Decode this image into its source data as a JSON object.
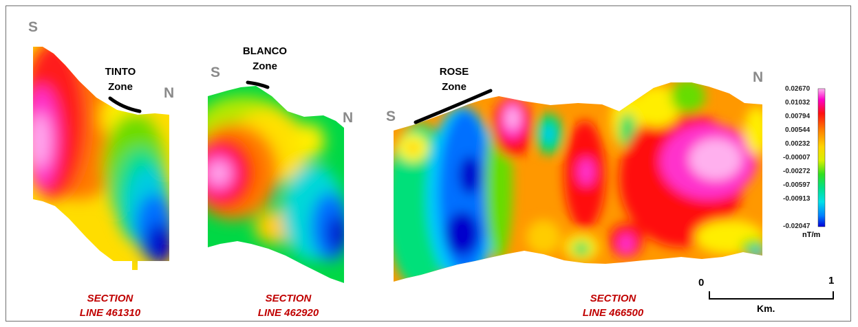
{
  "directions": {
    "s": "S",
    "n": "N"
  },
  "zones": [
    {
      "name": "TINTO",
      "suffix": "Zone"
    },
    {
      "name": "BLANCO",
      "suffix": "Zone"
    },
    {
      "name": "ROSE",
      "suffix": "Zone"
    }
  ],
  "sections": [
    {
      "prefix": "SECTION",
      "line": "LINE 461310"
    },
    {
      "prefix": "SECTION",
      "line": "LINE 462920"
    },
    {
      "prefix": "SECTION",
      "line": "LINE 466500"
    }
  ],
  "colorbar": {
    "unit": "nT/m",
    "ticks": [
      "0.02670",
      "0.01032",
      "0.00794",
      "0.00544",
      "0.00232",
      "-0.00007",
      "-0.00272",
      "-0.00597",
      "-0.00913",
      "-0.02047"
    ],
    "colors": [
      "#ffb3f0",
      "#ff00c8",
      "#ff1010",
      "#ff7f00",
      "#ffd400",
      "#ffff00",
      "#9be200",
      "#00e050",
      "#00e8e0",
      "#0080ff",
      "#0000d8"
    ]
  },
  "scalebar": {
    "start": "0",
    "end": "1",
    "unit": "Km."
  }
}
